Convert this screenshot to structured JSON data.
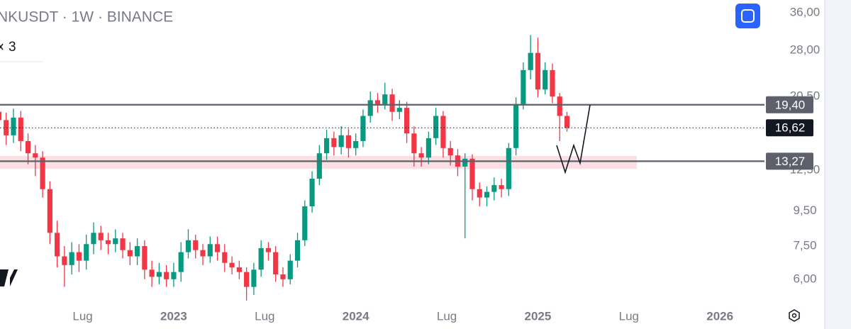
{
  "chart_data": {
    "type": "candlestick",
    "title": "NKUSDT · 1W · BINANCE",
    "indicator": "3",
    "log_scale": true,
    "up_color": "#089981",
    "down_color": "#f23645",
    "xlim": [
      2022.046,
      2026.233
    ],
    "ylim": [
      5.05,
      39.25
    ],
    "xticks": [
      {
        "value": 2022.5,
        "label": "Lug"
      },
      2023,
      {
        "value": 2023.5,
        "label": "Lug"
      },
      2024,
      {
        "value": 2024.5,
        "label": "Lug"
      },
      2025,
      {
        "value": 2025.5,
        "label": "Lug"
      },
      2026
    ],
    "yticks": [
      {
        "value": 36,
        "label": "36,00"
      },
      {
        "value": 28,
        "label": "28,00"
      },
      {
        "value": 20.5,
        "label": "20,50"
      },
      {
        "value": 12.5,
        "label": "12,50"
      },
      {
        "value": 9.5,
        "label": "9,50"
      },
      {
        "value": 7.5,
        "label": "7,50"
      },
      {
        "value": 6,
        "label": "6,00"
      }
    ],
    "x": [
      2022.04,
      2022.08,
      2022.12,
      2022.16,
      2022.2,
      2022.24,
      2022.28,
      2022.32,
      2022.36,
      2022.4,
      2022.44,
      2022.48,
      2022.52,
      2022.56,
      2022.6,
      2022.64,
      2022.68,
      2022.72,
      2022.76,
      2022.8,
      2022.84,
      2022.88,
      2022.92,
      2022.96,
      2023.0,
      2023.04,
      2023.08,
      2023.12,
      2023.16,
      2023.2,
      2023.24,
      2023.28,
      2023.32,
      2023.36,
      2023.4,
      2023.44,
      2023.48,
      2023.52,
      2023.56,
      2023.6,
      2023.64,
      2023.68,
      2023.72,
      2023.76,
      2023.8,
      2023.84,
      2023.88,
      2023.92,
      2023.96,
      2024.0,
      2024.04,
      2024.08,
      2024.12,
      2024.16,
      2024.2,
      2024.24,
      2024.28,
      2024.32,
      2024.36,
      2024.4,
      2024.44,
      2024.48,
      2024.52,
      2024.56,
      2024.6,
      2024.64,
      2024.68,
      2024.72,
      2024.76,
      2024.8,
      2024.84,
      2024.88,
      2024.92,
      2024.96,
      2025.0,
      2025.04,
      2025.08,
      2025.12,
      2025.16
    ],
    "open": [
      18.5,
      17.5,
      15.8,
      17.8,
      15.2,
      14.0,
      13.6,
      11.0,
      8.2,
      7.0,
      6.6,
      7.2,
      6.8,
      7.6,
      8.2,
      7.8,
      7.6,
      7.9,
      7.3,
      7.0,
      7.5,
      6.4,
      6.1,
      6.3,
      6.0,
      6.3,
      7.2,
      7.8,
      7.3,
      7.0,
      7.6,
      7.2,
      6.7,
      6.5,
      6.3,
      5.7,
      6.4,
      7.4,
      7.2,
      6.2,
      6.0,
      6.8,
      7.8,
      9.8,
      11.8,
      14.0,
      15.5,
      14.6,
      15.8,
      14.5,
      15.2,
      18.0,
      20.0,
      19.5,
      20.8,
      18.5,
      19.0,
      16.0,
      14.0,
      13.6,
      15.5,
      18.0,
      14.5,
      13.8,
      12.8,
      13.5,
      11.0,
      10.4,
      10.8,
      11.3,
      11.0,
      14.5,
      19.5,
      24.5,
      27.5,
      21.5,
      24.5,
      20.5,
      18.0
    ],
    "high": [
      19.6,
      18.4,
      18.9,
      18.6,
      16.0,
      14.8,
      14.2,
      11.6,
      8.9,
      7.5,
      7.7,
      7.6,
      8.1,
      8.8,
      8.6,
      8.2,
      8.4,
      8.2,
      7.7,
      7.9,
      7.8,
      6.8,
      6.7,
      6.6,
      6.7,
      7.7,
      8.4,
      8.1,
      7.6,
      8.0,
      8.0,
      7.6,
      7.0,
      6.8,
      6.5,
      6.7,
      7.8,
      7.7,
      7.5,
      6.5,
      7.1,
      8.2,
      10.2,
      12.4,
      14.8,
      16.4,
      16.2,
      16.8,
      16.5,
      16.0,
      18.8,
      21.2,
      21.0,
      22.5,
      21.6,
      20.0,
      19.8,
      16.8,
      14.6,
      16.2,
      19.0,
      18.6,
      15.2,
      14.4,
      14.0,
      13.9,
      11.5,
      11.2,
      11.9,
      11.8,
      15.0,
      20.4,
      25.8,
      31.0,
      30.5,
      25.8,
      25.6,
      21.0,
      18.5
    ],
    "low": [
      16.4,
      14.8,
      15.0,
      14.2,
      13.0,
      12.0,
      10.4,
      7.6,
      6.5,
      5.7,
      6.2,
      6.3,
      6.4,
      7.1,
      7.3,
      7.1,
      7.2,
      6.9,
      6.6,
      6.6,
      6.0,
      5.7,
      5.8,
      5.7,
      5.7,
      5.9,
      6.9,
      6.9,
      6.6,
      6.7,
      6.8,
      6.3,
      6.2,
      6.0,
      5.2,
      5.4,
      6.1,
      6.8,
      5.9,
      5.7,
      5.8,
      6.5,
      7.5,
      9.4,
      11.3,
      13.4,
      13.8,
      13.9,
      13.6,
      13.8,
      14.6,
      17.2,
      18.4,
      18.8,
      17.4,
      17.6,
      15.0,
      12.8,
      12.8,
      13.0,
      14.8,
      13.6,
      12.9,
      12.0,
      7.9,
      10.2,
      9.8,
      9.8,
      10.2,
      10.4,
      10.5,
      13.8,
      18.8,
      23.0,
      20.4,
      20.8,
      19.6,
      15.2,
      16.2
    ],
    "close": [
      17.5,
      15.8,
      17.8,
      15.2,
      14.0,
      13.6,
      11.0,
      8.2,
      7.0,
      6.6,
      7.2,
      6.8,
      7.6,
      8.2,
      7.8,
      7.6,
      7.9,
      7.3,
      7.0,
      7.5,
      6.4,
      6.1,
      6.3,
      6.0,
      6.3,
      7.2,
      7.8,
      7.3,
      7.0,
      7.6,
      7.2,
      6.7,
      6.5,
      6.3,
      5.7,
      6.4,
      7.4,
      7.2,
      6.2,
      6.0,
      6.8,
      7.8,
      9.8,
      11.8,
      14.0,
      15.5,
      14.6,
      15.8,
      14.5,
      15.2,
      18.0,
      20.0,
      19.5,
      20.8,
      18.5,
      19.0,
      16.0,
      14.0,
      13.6,
      15.5,
      18.0,
      14.5,
      13.8,
      12.8,
      13.5,
      11.0,
      10.4,
      10.8,
      11.3,
      11.0,
      14.5,
      19.5,
      24.5,
      27.5,
      21.5,
      24.5,
      20.5,
      18.0,
      16.62
    ],
    "zone": [
      12.6,
      13.75
    ],
    "levels": [
      {
        "value": 19.4,
        "label": "19,40",
        "style": "solid",
        "color": "#5d606b"
      },
      {
        "value": 16.62,
        "label": "16,62",
        "style": "dotted",
        "color": "#131722"
      },
      {
        "value": 13.27,
        "label": "13,27",
        "style": "solid",
        "color": "#5d606b"
      }
    ]
  }
}
